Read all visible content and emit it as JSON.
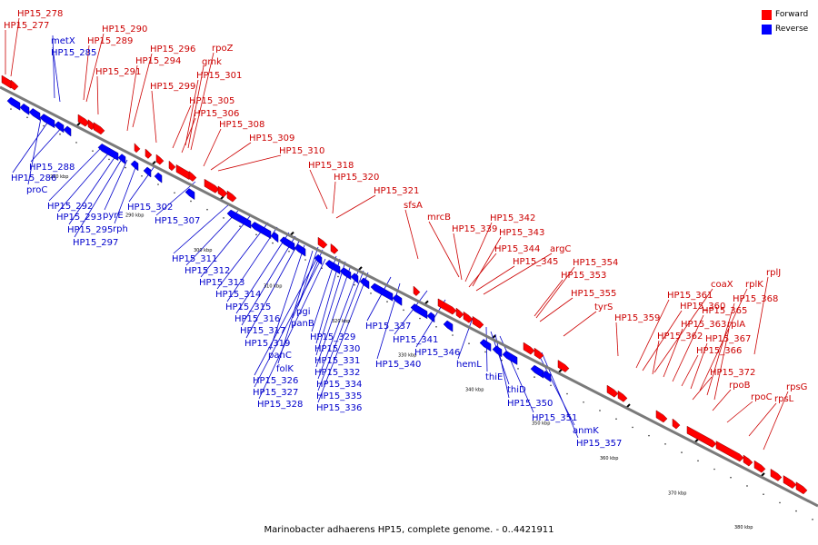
{
  "caption": "Marinobacter adhaerens HP15, complete genome. - 0..4421911",
  "legend": {
    "forward_label": "Forward",
    "reverse_label": "Reverse",
    "forward_color": "#ff0000",
    "reverse_color": "#0000ff"
  },
  "colors": {
    "forward_text": "#cc0000",
    "reverse_text": "#0000cc",
    "forward_line": "#cc0000",
    "reverse_line": "#0000cc",
    "backbone": "#7a7a7a"
  },
  "scale_labels": [
    "280 kbp",
    "290 kbp",
    "300 kbp",
    "310 kbp",
    "320 kbp",
    "330 kbp",
    "340 kbp",
    "350 kbp",
    "360 kbp",
    "370 kbp",
    "380 kbp",
    "390 kbp"
  ],
  "forward_genes": [
    "HP15_278",
    "HP15_277",
    "HP15_290",
    "HP15_289",
    "HP15_291",
    "HP15_296",
    "rpoZ",
    "HP15_294",
    "gmk",
    "HP15_301",
    "HP15_299",
    "HP15_305",
    "HP15_306",
    "HP15_308",
    "HP15_309",
    "HP15_310",
    "HP15_318",
    "HP15_320",
    "HP15_321",
    "sfsA",
    "mrcB",
    "HP15_342",
    "HP15_339",
    "HP15_343",
    "argC",
    "HP15_344",
    "HP15_345",
    "HP15_354",
    "HP15_353",
    "HP15_355",
    "tyrS",
    "rplJ",
    "coaX",
    "rplK",
    "HP15_368",
    "HP15_361",
    "HP15_360",
    "HP15_365",
    "HP15_359",
    "rplA",
    "HP15_363",
    "HP15_362",
    "HP15_367",
    "HP15_366",
    "HP15_372",
    "rpoB",
    "rpsG",
    "rpoC",
    "rpsL"
  ],
  "reverse_genes": [
    "metX",
    "HP15_285",
    "HP15_288",
    "HP15_286",
    "proC",
    "HP15_292",
    "HP15_302",
    "HP15_293",
    "pyrE",
    "HP15_295",
    "rph",
    "HP15_297",
    "HP15_307",
    "HP15_311",
    "HP15_312",
    "HP15_313",
    "HP15_314",
    "HP15_315",
    "HP15_316",
    "pgi",
    "panB",
    "HP15_329",
    "HP15_337",
    "HP15_317",
    "HP15_319",
    "HP15_330",
    "panC",
    "HP15_331",
    "HP15_341",
    "HP15_346",
    "HP15_340",
    "folK",
    "HP15_332",
    "HP15_326",
    "HP15_334",
    "HP15_327",
    "HP15_335",
    "HP15_328",
    "HP15_336",
    "hemL",
    "thiE",
    "thiD",
    "HP15_350",
    "HP15_351",
    "anmK",
    "HP15_357"
  ]
}
